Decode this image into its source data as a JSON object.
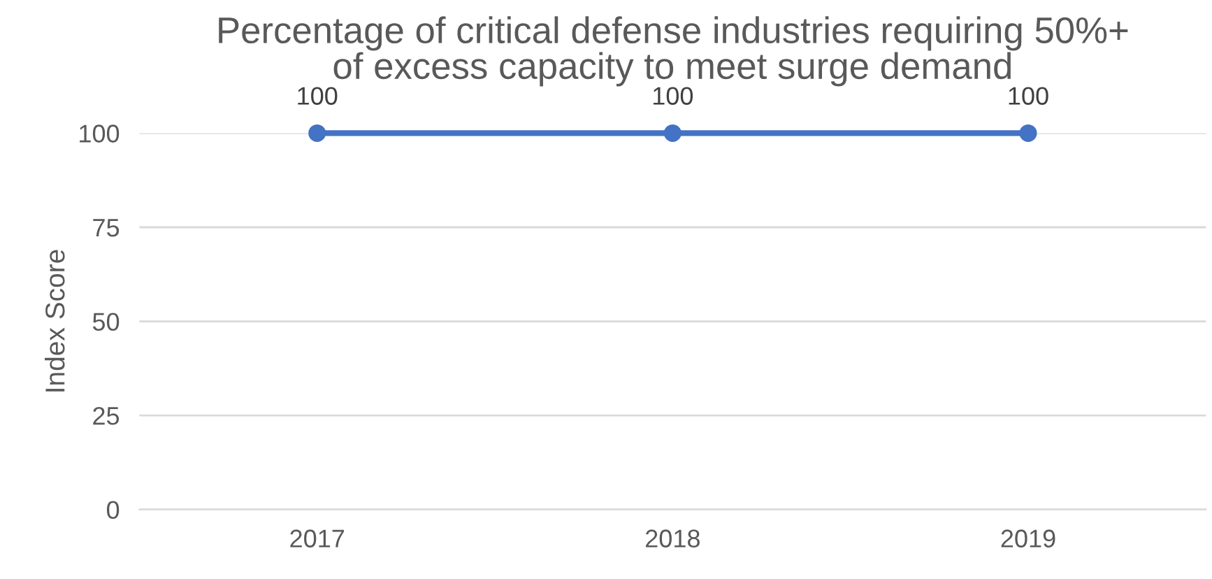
{
  "chart_data": {
    "type": "line",
    "title": "Percentage of critical defense industries requiring 50%+\nof excess capacity to meet surge demand",
    "ylabel": "Index Score",
    "categories": [
      "2017",
      "2018",
      "2019"
    ],
    "series": [
      {
        "color": "#4472c4",
        "values": [
          100,
          100,
          100
        ]
      }
    ],
    "ylim": [
      0,
      100
    ],
    "yticks": [
      0,
      25,
      50,
      75,
      100
    ],
    "grid": "y",
    "marker": "circle",
    "line_style": "solid",
    "data_labels": true,
    "legend": false
  }
}
